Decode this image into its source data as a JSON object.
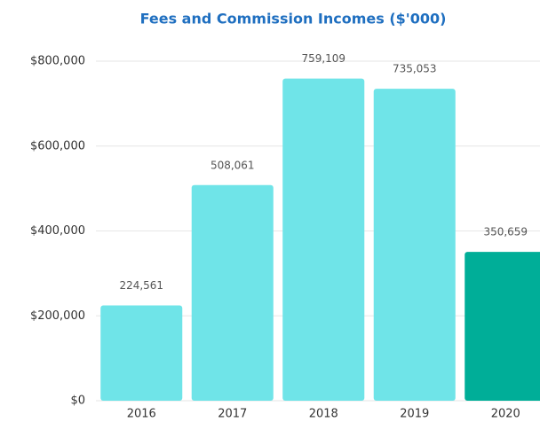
{
  "chart_data": {
    "type": "bar",
    "title": "Fees and Commission Incomes  ($'000)",
    "categories": [
      "2016",
      "2017",
      "2018",
      "2019",
      "2020"
    ],
    "values": [
      224561,
      508061,
      759109,
      735053,
      350659
    ],
    "value_labels": [
      "224,561",
      "508,061",
      "759,109",
      "735,053",
      "350,659"
    ],
    "colors": [
      "#6fe4e8",
      "#6fe4e8",
      "#6fe4e8",
      "#6fe4e8",
      "#00ae98"
    ],
    "ylim": [
      0,
      800000
    ],
    "yticks": [
      {
        "value": 0,
        "label": "$0"
      },
      {
        "value": 200000,
        "label": "$200,000"
      },
      {
        "value": 400000,
        "label": "$400,000"
      },
      {
        "value": 600000,
        "label": "$600,000"
      },
      {
        "value": 800000,
        "label": "$800,000"
      }
    ],
    "grid": true
  }
}
